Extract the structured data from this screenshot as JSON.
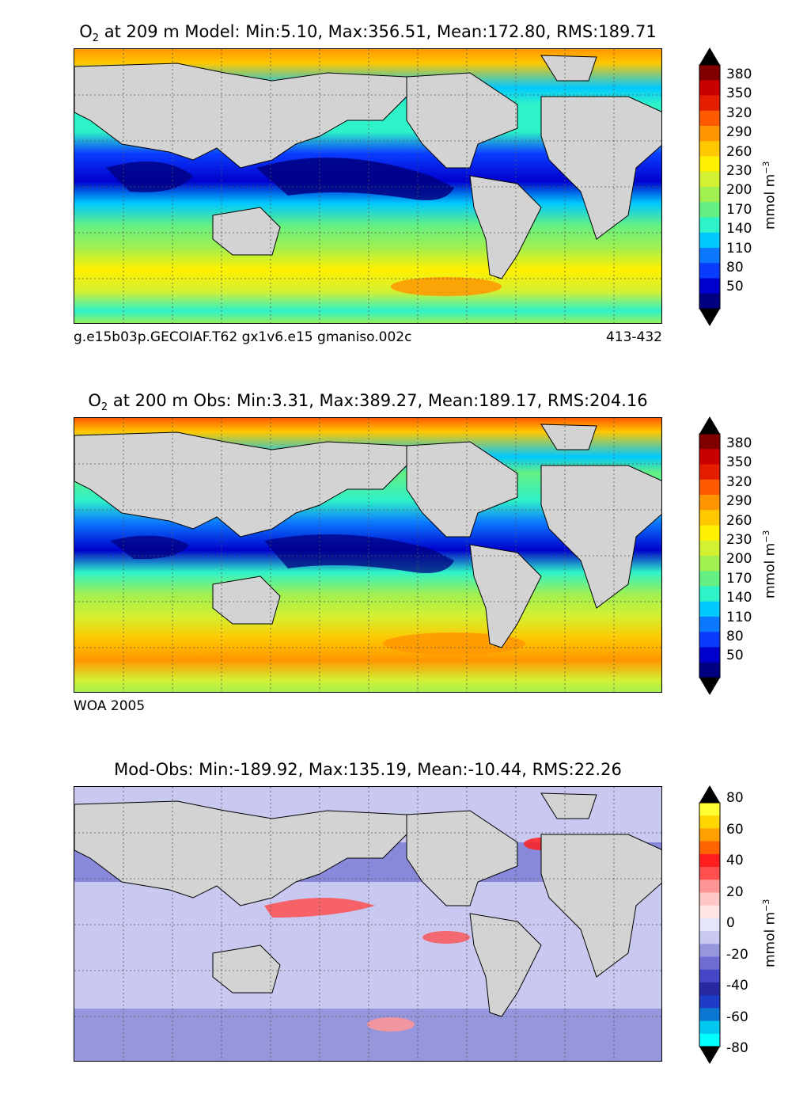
{
  "chart_data": [
    {
      "type": "heatmap",
      "title": {
        "pre": "O",
        "sub": "2",
        "post": " at 209 m Model: Min:5.10, Max:356.51, Mean:172.80, RMS:189.71"
      },
      "caption_left": "g.e15b03p.GECOIAF.T62 gx1v6.e15 gmaniso.002c",
      "caption_right": "413-432",
      "colorbar": {
        "ticks": [
          "380",
          "350",
          "320",
          "290",
          "260",
          "230",
          "200",
          "170",
          "140",
          "110",
          "80",
          "50"
        ],
        "units": {
          "base": "mmol m",
          "sup": "−3"
        },
        "colors": [
          "#000080",
          "#0000cd",
          "#0a3cff",
          "#0a78ff",
          "#00c8ff",
          "#2ef2c8",
          "#64f082",
          "#a0f050",
          "#d4f032",
          "#fff000",
          "#ffc800",
          "#ff9600",
          "#ff5a00",
          "#e61e00",
          "#c80000",
          "#800000"
        ]
      },
      "summary": {
        "model": "Model",
        "min": 5.1,
        "max": 356.51,
        "mean": 172.8,
        "rms": 189.71,
        "depth_m": 209
      }
    },
    {
      "type": "heatmap",
      "title": {
        "pre": "O",
        "sub": "2",
        "post": " at 200 m Obs: Min:3.31, Max:389.27, Mean:189.17, RMS:204.16"
      },
      "caption_left": "WOA 2005",
      "caption_right": "",
      "colorbar": {
        "ticks": [
          "380",
          "350",
          "320",
          "290",
          "260",
          "230",
          "200",
          "170",
          "140",
          "110",
          "80",
          "50"
        ],
        "units": {
          "base": "mmol m",
          "sup": "−3"
        },
        "colors": [
          "#000080",
          "#0000cd",
          "#0a3cff",
          "#0a78ff",
          "#00c8ff",
          "#2ef2c8",
          "#64f082",
          "#a0f050",
          "#d4f032",
          "#fff000",
          "#ffc800",
          "#ff9600",
          "#ff5a00",
          "#e61e00",
          "#c80000",
          "#800000"
        ]
      },
      "summary": {
        "model": "Obs",
        "min": 3.31,
        "max": 389.27,
        "mean": 189.17,
        "rms": 204.16,
        "depth_m": 200
      }
    },
    {
      "type": "heatmap",
      "title": {
        "pre": "",
        "sub": "",
        "post": "Mod-Obs: Min:-189.92, Max:135.19, Mean:-10.44, RMS:22.26"
      },
      "caption_left": "",
      "caption_right": "",
      "colorbar": {
        "ticks": [
          "80",
          "60",
          "40",
          "20",
          "0",
          "-20",
          "-40",
          "-60",
          "-80"
        ],
        "units": {
          "base": "mmol m",
          "sup": "−3"
        },
        "colors": [
          "#00ffff",
          "#00c8f0",
          "#0a78d2",
          "#1e3cc8",
          "#2828a0",
          "#4646c8",
          "#6e6ed2",
          "#9696dc",
          "#c8c8f0",
          "#e6e6fa",
          "#ffe6e6",
          "#ffc8c8",
          "#ff9696",
          "#ff5050",
          "#ff1e1e",
          "#ff6400",
          "#ffa000",
          "#ffd700",
          "#ffff32"
        ]
      },
      "summary": {
        "min": -189.92,
        "max": 135.19,
        "mean": -10.44,
        "rms": 22.26
      }
    }
  ],
  "style": {
    "land": "#d3d3d3",
    "frame": "#000000",
    "grid": "#555555",
    "under_color": "#000000",
    "over_color": "#000000"
  }
}
